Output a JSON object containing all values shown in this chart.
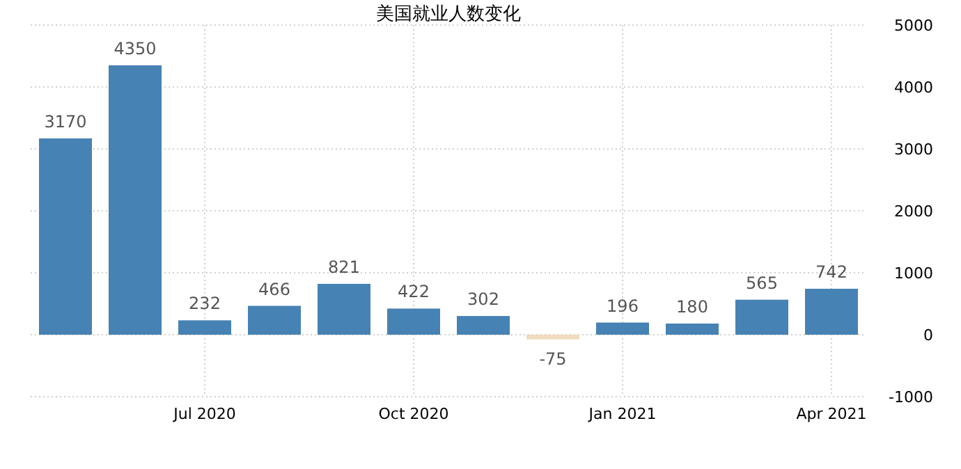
{
  "chart_data": {
    "type": "bar",
    "title": "美国就业人数变化",
    "categories": [
      null,
      null,
      "Jul 2020",
      null,
      null,
      "Oct 2020",
      null,
      null,
      "Jan 2021",
      null,
      null,
      "Apr 2021"
    ],
    "values": [
      3170,
      4350,
      232,
      466,
      821,
      422,
      302,
      -75,
      196,
      180,
      565,
      742
    ],
    "colors": [
      "#4682b4",
      "#4682b4",
      "#4682b4",
      "#4682b4",
      "#4682b4",
      "#4682b4",
      "#4682b4",
      "#f0dcbe",
      "#4682b4",
      "#4682b4",
      "#4682b4",
      "#4682b4"
    ],
    "ylim": [
      -1000,
      5000
    ],
    "yticks": [
      -1000,
      0,
      1000,
      2000,
      3000,
      4000,
      5000
    ],
    "data_labels": true,
    "grid": true
  }
}
